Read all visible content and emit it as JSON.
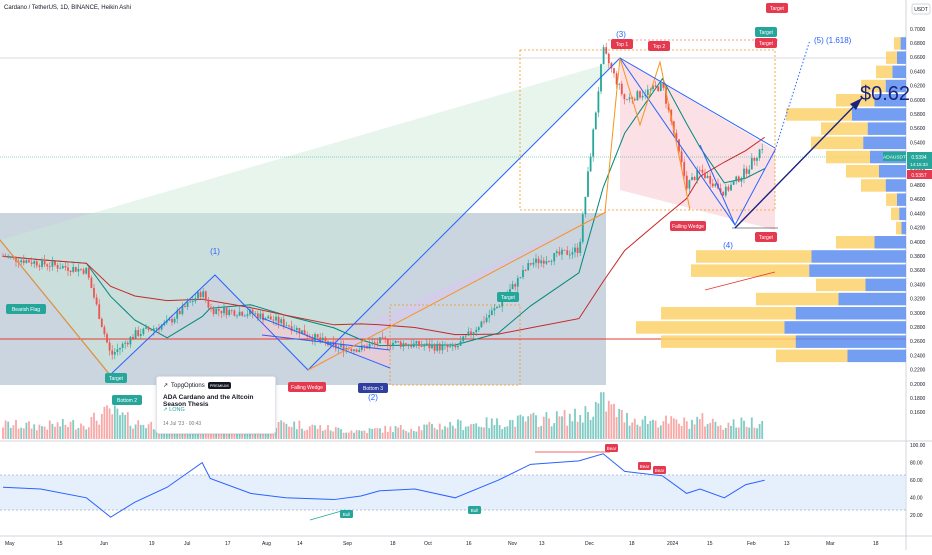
{
  "header": {
    "title": "Cardano / TetherUS, 1D, BINANCE, Heikin Ashi",
    "currency": "USDT"
  },
  "price_axis": {
    "ticks": [
      "0.7000",
      "0.6800",
      "0.6600",
      "0.6400",
      "0.6200",
      "0.6000",
      "0.5800",
      "0.5600",
      "0.5400",
      "0.5200",
      "0.5000",
      "0.4800",
      "0.4600",
      "0.4400",
      "0.4200",
      "0.4000",
      "0.3800",
      "0.3600",
      "0.3400",
      "0.3200",
      "0.3000",
      "0.2800",
      "0.2600",
      "0.2400",
      "0.2200",
      "0.2000",
      "0.1800",
      "0.1600"
    ],
    "last_price_label": "ADAUSDT",
    "last_price": "0.5394",
    "countdown": "14:15:33",
    "prev_price": "0.5357"
  },
  "rsi_axis": {
    "ticks": [
      "100.00",
      "80.00",
      "60.00",
      "40.00",
      "20.00"
    ]
  },
  "time_axis": {
    "labels": [
      "May",
      "15",
      "Jun",
      "19",
      "Jul",
      "17",
      "Aug",
      "14",
      "Sep",
      "18",
      "Oct",
      "16",
      "Nov",
      "13",
      "Dec",
      "18",
      "2024",
      "15",
      "Feb",
      "13",
      "Mar",
      "18"
    ]
  },
  "annotations": {
    "target_price": "$0.62",
    "wave_labels": [
      "(1)",
      "(2)",
      "(3)",
      "(4)",
      "(5) (1.618)"
    ],
    "tags": [
      "Bearish Flag",
      "Target",
      "Bottom 2",
      "Falling Wedge",
      "Bottom 3",
      "Target",
      "Top 1",
      "Top 2",
      "Target",
      "Target",
      "Target",
      "Falling Wedge",
      "Target"
    ],
    "rsi_tags": [
      "Bull",
      "Bull",
      "Bear",
      "Bear",
      "Bear"
    ]
  },
  "idea_card": {
    "brand": "TopgOptions",
    "badge": "PREMIUM",
    "title": "ADA Cardano and the Altcoin Season Thesis",
    "direction": "LONG",
    "date": "14 Jul '23 · 00:43"
  },
  "chart_data": {
    "type": "line",
    "title": "Cardano / TetherUS, 1D, BINANCE, Heikin Ashi",
    "x": [
      "2023-05-01",
      "2023-05-15",
      "2023-06-01",
      "2023-06-10",
      "2023-06-19",
      "2023-07-01",
      "2023-07-14",
      "2023-07-17",
      "2023-08-01",
      "2023-08-14",
      "2023-09-01",
      "2023-09-11",
      "2023-09-18",
      "2023-10-01",
      "2023-10-16",
      "2023-11-01",
      "2023-11-13",
      "2023-12-01",
      "2023-12-10",
      "2023-12-18",
      "2024-01-01",
      "2024-01-10",
      "2024-01-15",
      "2024-01-24",
      "2024-02-01",
      "2024-02-08"
    ],
    "series": [
      {
        "values": [
          0.38,
          0.37,
          0.36,
          0.24,
          0.27,
          0.285,
          0.33,
          0.305,
          0.3,
          0.285,
          0.252,
          0.25,
          0.26,
          0.255,
          0.25,
          0.31,
          0.37,
          0.39,
          0.67,
          0.6,
          0.62,
          0.48,
          0.5,
          0.47,
          0.5,
          0.54
        ]
      }
    ],
    "ylim": [
      0.15,
      0.72
    ],
    "volume": [
      9,
      8,
      10,
      17,
      10,
      8,
      18,
      10,
      6,
      10,
      6,
      5,
      6,
      7,
      9,
      10,
      12,
      14,
      23,
      13,
      11,
      10,
      12,
      9,
      10,
      12
    ],
    "rsi": [
      52,
      50,
      40,
      18,
      35,
      52,
      80,
      62,
      45,
      40,
      38,
      42,
      48,
      50,
      40,
      60,
      78,
      82,
      90,
      70,
      65,
      45,
      50,
      40,
      55,
      60
    ],
    "rsi_ylim": [
      0,
      100
    ]
  }
}
